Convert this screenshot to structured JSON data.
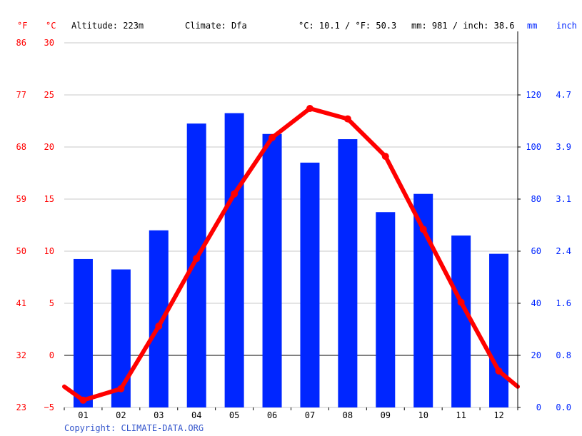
{
  "header": {
    "f_unit": "°F",
    "c_unit": "°C",
    "altitude": "Altitude: 223m",
    "climate": "Climate: Dfa",
    "temp_summary": "°C: 10.1 / °F: 50.3",
    "precip_summary": "mm: 981 / inch: 38.6",
    "mm_unit": "mm",
    "inch_unit": "inch"
  },
  "copyright": "Copyright: CLIMATE-DATA.ORG",
  "colors": {
    "temperature": "#ff0000",
    "precipitation": "#0026ff",
    "grid": "#c8c8c8",
    "zero_line": "#000000",
    "text": "#000000",
    "link": "#3355cc"
  },
  "chart_data": {
    "type": "bar+line",
    "categories": [
      "01",
      "02",
      "03",
      "04",
      "05",
      "06",
      "07",
      "08",
      "09",
      "10",
      "11",
      "12"
    ],
    "precipitation_mm": [
      57,
      53,
      68,
      109,
      113,
      105,
      94,
      103,
      75,
      82,
      66,
      59
    ],
    "temperature_c": [
      -4.3,
      -3.2,
      2.8,
      9.3,
      15.5,
      20.9,
      23.7,
      22.7,
      19.1,
      12.1,
      5.1,
      -1.5
    ],
    "temperature_line_ends_c": [
      -3.0,
      -3.0
    ],
    "y_left_c_ticks": [
      30,
      25,
      20,
      15,
      10,
      5,
      0,
      -5
    ],
    "y_left_f_ticks": [
      86,
      77,
      68,
      59,
      50,
      41,
      32,
      23
    ],
    "y_right_mm_ticks": [
      120,
      100,
      80,
      60,
      40,
      20,
      0
    ],
    "y_right_inch_ticks": [
      "4.7",
      "3.9",
      "3.1",
      "2.4",
      "1.6",
      "0.8",
      "0.0"
    ],
    "ylim_c": [
      -5,
      30
    ],
    "ylim_mm": [
      0,
      140
    ],
    "grid": true
  }
}
